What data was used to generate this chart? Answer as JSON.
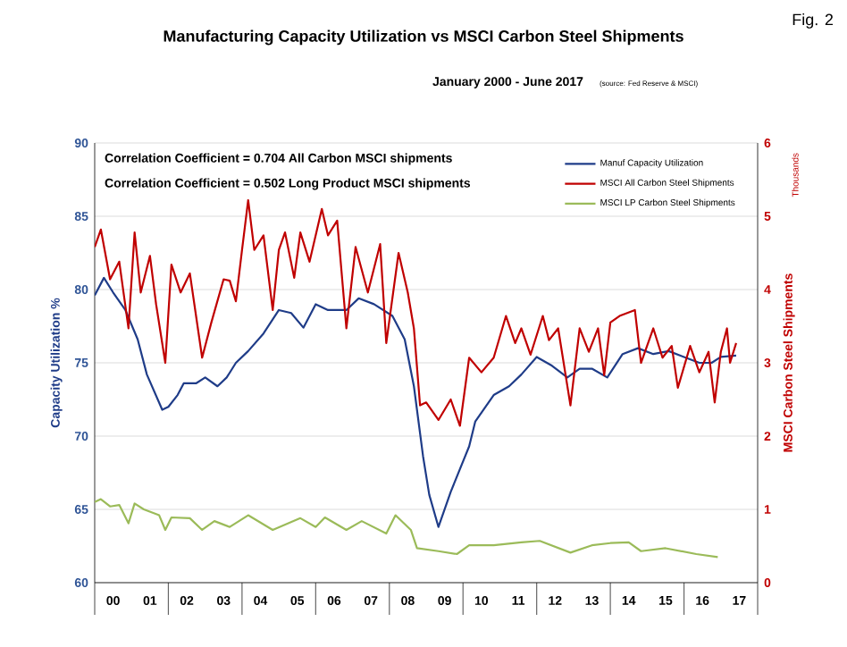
{
  "chart_data": {
    "type": "line",
    "title": "Manufacturing Capacity Utilization vs MSCI Carbon Steel Shipments",
    "subtitle": "January 2000 - June 2017",
    "ylabel": "Capacity Utilization %",
    "y2label": "MSCI Carbon Steel Shipments",
    "annotations": [
      "Correlation Coefficient = 0.704 All Carbon MSCI shipments",
      "Correlation Coefficient = 0.502 Long Product  MSCI shipments",
      "(source: Fed Reserve & MSCI)",
      "Fig. 2",
      "Thousands"
    ],
    "xlim": [
      "2000-01-01",
      "2018-01-01"
    ],
    "xticks": [
      {
        "value": "2000-07-01",
        "label": "00"
      },
      {
        "value": "2001-07-01",
        "label": "01"
      },
      {
        "value": "2002-07-01",
        "label": "02"
      },
      {
        "value": "2003-07-01",
        "label": "03"
      },
      {
        "value": "2004-07-01",
        "label": "04"
      },
      {
        "value": "2005-07-01",
        "label": "05"
      },
      {
        "value": "2006-07-01",
        "label": "06"
      },
      {
        "value": "2007-07-01",
        "label": "07"
      },
      {
        "value": "2008-07-01",
        "label": "08"
      },
      {
        "value": "2009-07-01",
        "label": "09"
      },
      {
        "value": "2010-07-01",
        "label": "10"
      },
      {
        "value": "2011-07-01",
        "label": "11"
      },
      {
        "value": "2012-07-01",
        "label": "12"
      },
      {
        "value": "2013-07-01",
        "label": "13"
      },
      {
        "value": "2014-07-01",
        "label": "14"
      },
      {
        "value": "2015-07-01",
        "label": "15"
      },
      {
        "value": "2016-07-01",
        "label": "16"
      },
      {
        "value": "2017-07-01",
        "label": "17"
      }
    ],
    "ylim": [
      60,
      90
    ],
    "yticks": [
      60,
      65,
      70,
      75,
      80,
      85,
      90
    ],
    "y2lim": [
      0,
      6
    ],
    "y2ticks": [
      0,
      1,
      2,
      3,
      4,
      5,
      6
    ],
    "grid": "y",
    "legend": "top right",
    "marker": "none",
    "series": [
      {
        "name": "Manuf Capacity Utilization",
        "color": "#1f3c88",
        "x": [
          "2000-01",
          "2000-04",
          "2000-07",
          "2000-11",
          "2001-03",
          "2001-06",
          "2001-11",
          "2002-01",
          "2002-04",
          "2002-06",
          "2002-10",
          "2003-01",
          "2003-05",
          "2003-08",
          "2003-11",
          "2004-03",
          "2004-08",
          "2005-01",
          "2005-05",
          "2005-09",
          "2006-01",
          "2006-05",
          "2006-11",
          "2007-03",
          "2007-08",
          "2008-02",
          "2008-06",
          "2008-09",
          "2008-12",
          "2009-02",
          "2009-05",
          "2009-09",
          "2010-03",
          "2010-05",
          "2010-11",
          "2011-04",
          "2011-08",
          "2012-01",
          "2012-06",
          "2012-11",
          "2013-03",
          "2013-07",
          "2013-12",
          "2014-05",
          "2014-10",
          "2015-03",
          "2015-08",
          "2016-01",
          "2016-06",
          "2016-10",
          "2017-01",
          "2017-06"
        ],
        "values": [
          79.6,
          80.8,
          79.8,
          78.6,
          76.6,
          74.2,
          71.8,
          72.0,
          72.8,
          73.6,
          73.6,
          74.0,
          73.4,
          74.0,
          75.0,
          75.8,
          77.0,
          78.6,
          78.4,
          77.4,
          79.0,
          78.6,
          78.6,
          79.4,
          79.0,
          78.2,
          76.6,
          73.4,
          68.6,
          66.0,
          63.8,
          66.2,
          69.3,
          71.0,
          72.8,
          73.4,
          74.2,
          75.4,
          74.8,
          74.0,
          74.6,
          74.6,
          74.0,
          75.6,
          76.0,
          75.6,
          75.8,
          75.4,
          75.0,
          75.0,
          75.4,
          75.5
        ]
      },
      {
        "name": "MSCI All Carbon Steel Shipments",
        "color": "#c00000",
        "axis": "y2",
        "x": [
          "2000-01",
          "2000-03",
          "2000-06",
          "2000-09",
          "2000-12",
          "2001-02",
          "2001-04",
          "2001-07",
          "2001-09",
          "2001-12",
          "2002-02",
          "2002-05",
          "2002-08",
          "2002-12",
          "2003-03",
          "2003-07",
          "2003-09",
          "2003-11",
          "2004-01",
          "2004-03",
          "2004-05",
          "2004-08",
          "2004-11",
          "2005-01",
          "2005-03",
          "2005-06",
          "2005-08",
          "2005-11",
          "2006-03",
          "2006-05",
          "2006-08",
          "2006-11",
          "2007-02",
          "2007-06",
          "2007-10",
          "2007-12",
          "2008-04",
          "2008-07",
          "2008-09",
          "2008-11",
          "2009-01",
          "2009-05",
          "2009-09",
          "2009-12",
          "2010-03",
          "2010-07",
          "2010-11",
          "2011-03",
          "2011-06",
          "2011-08",
          "2011-11",
          "2012-03",
          "2012-05",
          "2012-08",
          "2012-12",
          "2013-03",
          "2013-06",
          "2013-09",
          "2013-11",
          "2014-01",
          "2014-04",
          "2014-09",
          "2014-11",
          "2015-03",
          "2015-06",
          "2015-09",
          "2015-11",
          "2016-03",
          "2016-06",
          "2016-09",
          "2016-11",
          "2017-01",
          "2017-03",
          "2017-04",
          "2017-06"
        ],
        "values": [
          4.58,
          4.82,
          4.14,
          4.38,
          3.47,
          4.78,
          3.96,
          4.46,
          3.8,
          3.0,
          4.34,
          3.96,
          4.22,
          3.07,
          3.55,
          4.14,
          4.12,
          3.84,
          4.54,
          5.22,
          4.54,
          4.74,
          3.72,
          4.54,
          4.78,
          4.16,
          4.78,
          4.38,
          5.1,
          4.74,
          4.94,
          3.47,
          4.58,
          3.96,
          4.62,
          3.27,
          4.5,
          3.96,
          3.47,
          2.42,
          2.46,
          2.22,
          2.5,
          2.14,
          3.07,
          2.87,
          3.07,
          3.64,
          3.27,
          3.47,
          3.11,
          3.64,
          3.31,
          3.47,
          2.42,
          3.47,
          3.15,
          3.47,
          2.83,
          3.55,
          3.64,
          3.72,
          3.0,
          3.47,
          3.07,
          3.23,
          2.66,
          3.23,
          2.87,
          3.15,
          2.46,
          3.15,
          3.47,
          3.0,
          3.27
        ]
      },
      {
        "name": "MSCI LP Carbon Steel Shipments",
        "color": "#9bbb59",
        "axis": "y2",
        "x": [
          "2000-01",
          "2000-03",
          "2000-06",
          "2000-09",
          "2000-12",
          "2001-02",
          "2001-05",
          "2001-10",
          "2001-12",
          "2002-02",
          "2002-08",
          "2002-12",
          "2003-04",
          "2003-09",
          "2004-03",
          "2004-11",
          "2005-08",
          "2006-01",
          "2006-04",
          "2006-11",
          "2007-04",
          "2007-12",
          "2008-03",
          "2008-08",
          "2008-10",
          "2009-05",
          "2009-11",
          "2010-03",
          "2010-11",
          "2011-08",
          "2012-02",
          "2012-12",
          "2013-07",
          "2014-01",
          "2014-07",
          "2014-11",
          "2015-07",
          "2016-05",
          "2016-12"
        ],
        "values": [
          1.1,
          1.14,
          1.04,
          1.06,
          0.81,
          1.08,
          1.0,
          0.92,
          0.72,
          0.89,
          0.88,
          0.72,
          0.84,
          0.76,
          0.92,
          0.72,
          0.88,
          0.76,
          0.89,
          0.72,
          0.84,
          0.67,
          0.92,
          0.72,
          0.47,
          0.43,
          0.39,
          0.51,
          0.51,
          0.55,
          0.57,
          0.41,
          0.51,
          0.54,
          0.55,
          0.43,
          0.47,
          0.39,
          0.35
        ]
      }
    ]
  }
}
